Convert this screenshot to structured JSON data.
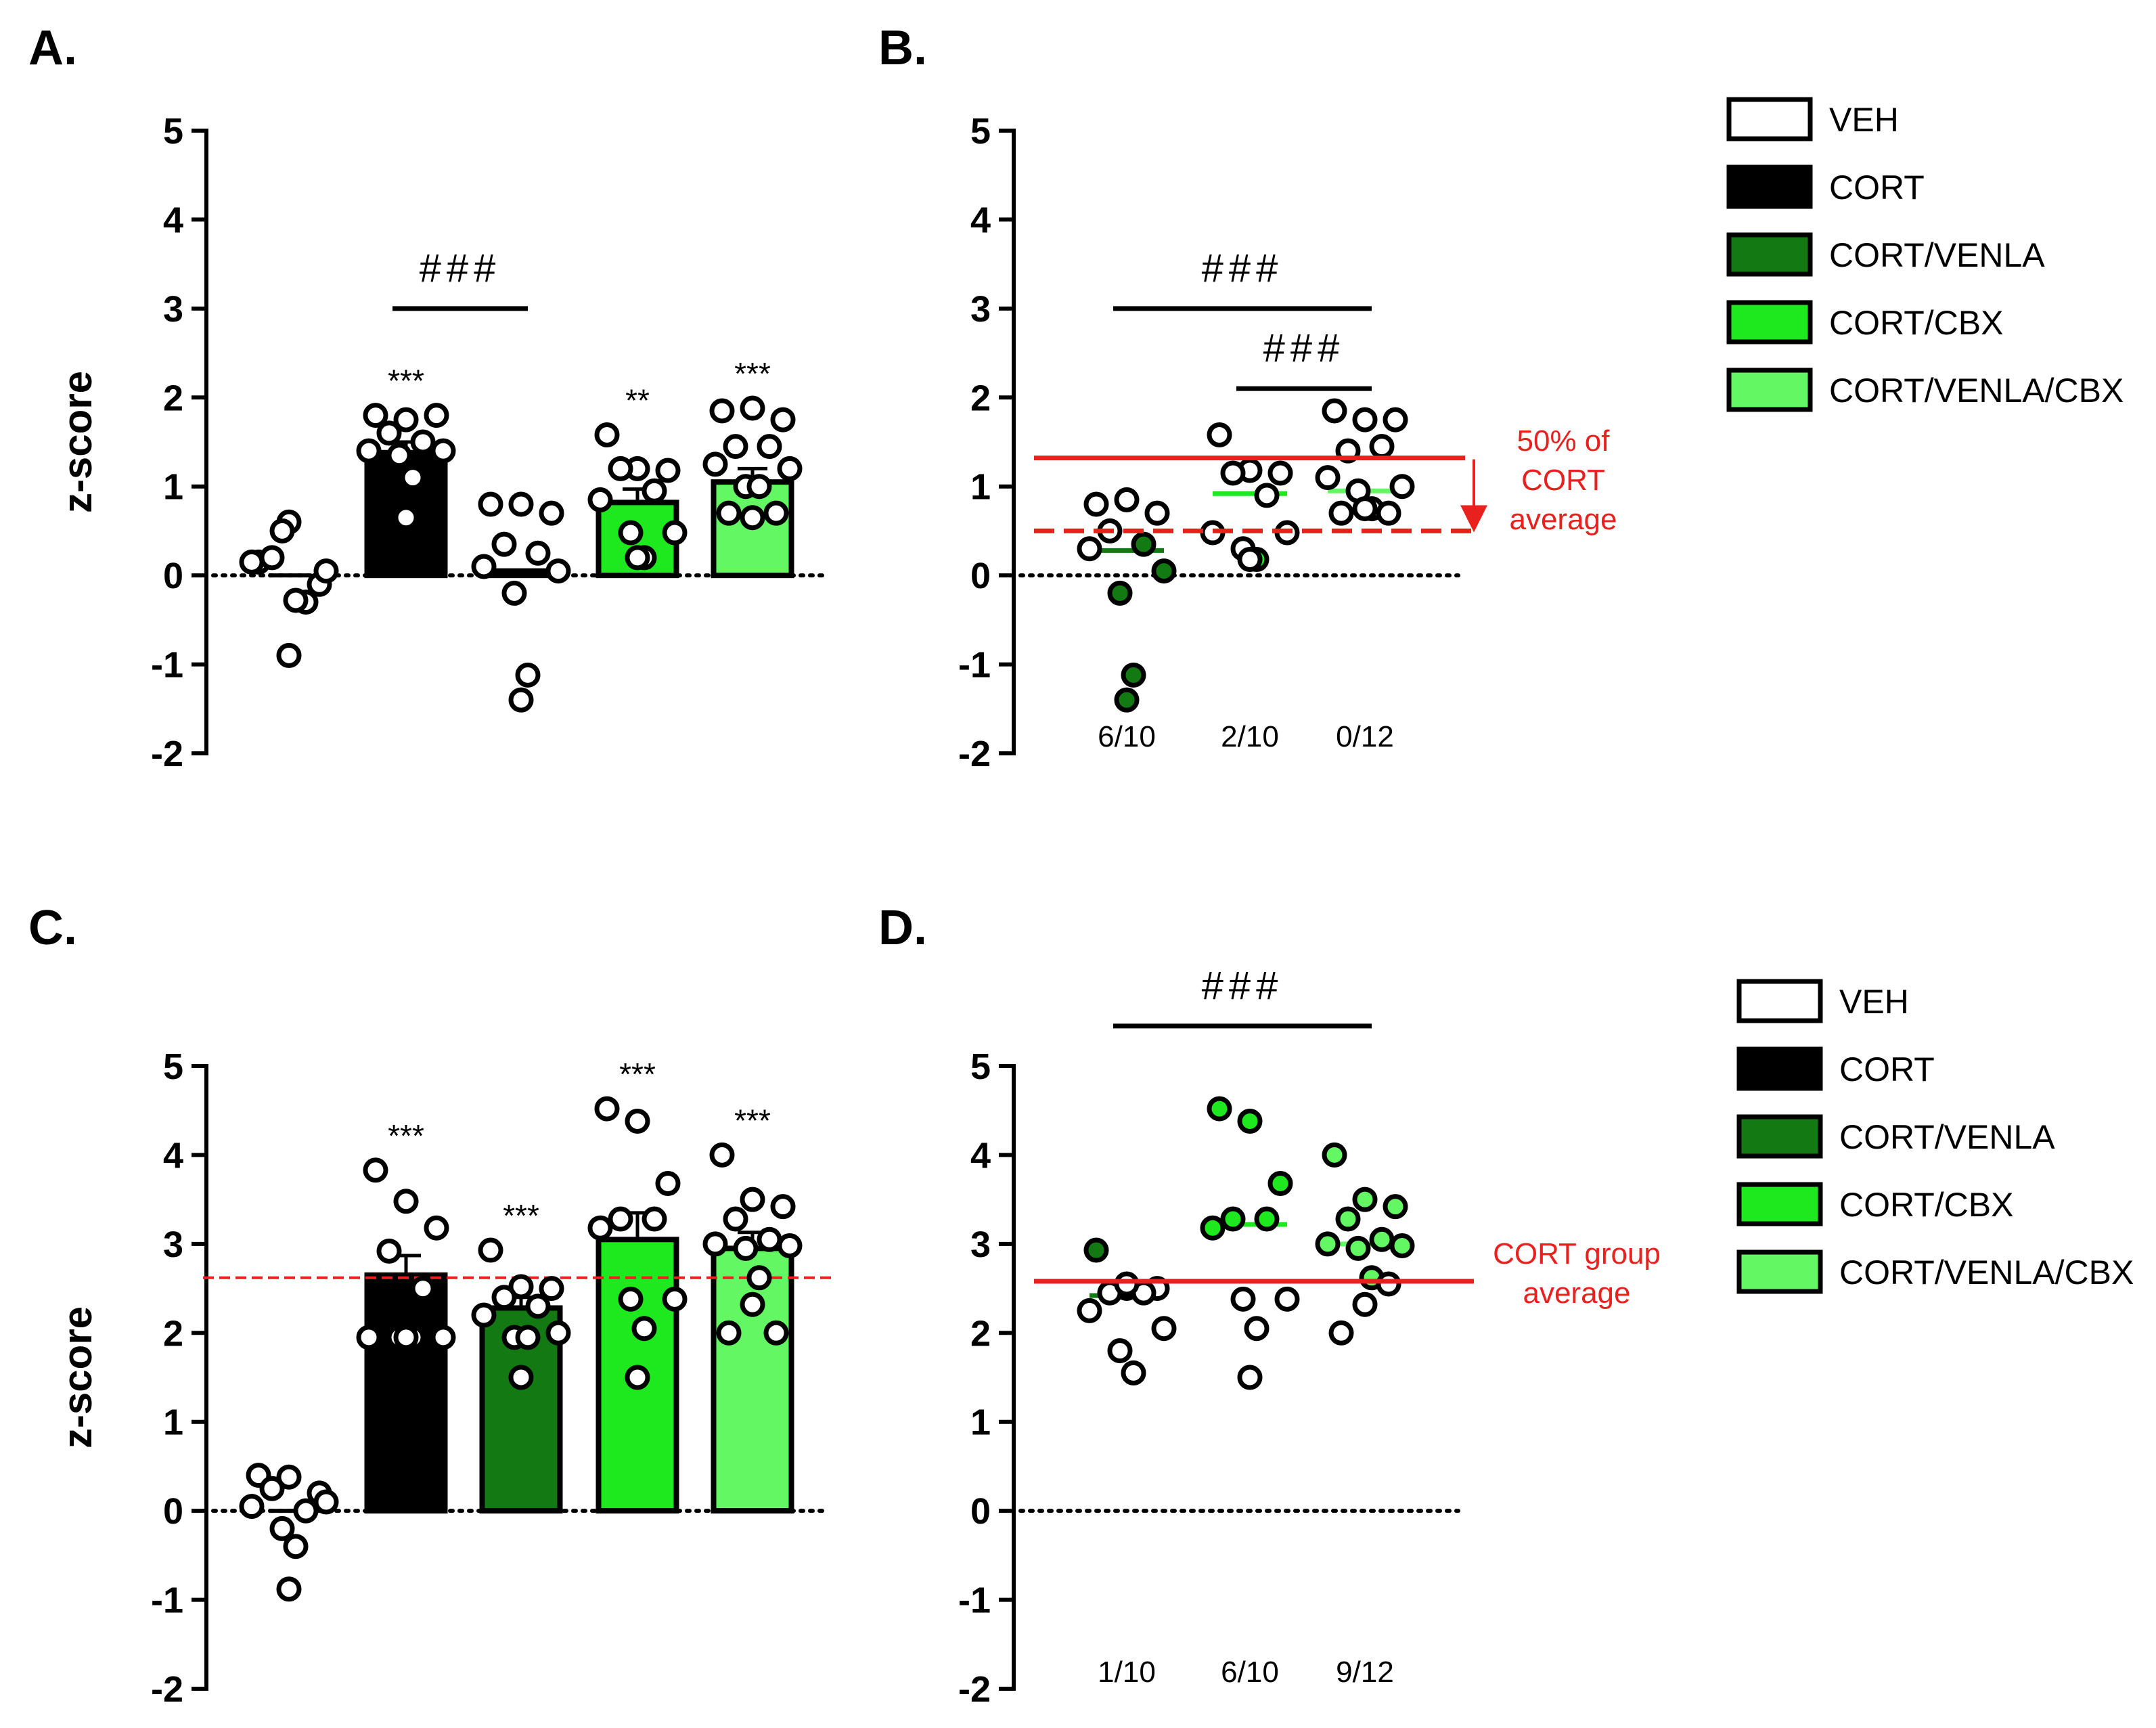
{
  "colors": {
    "VEH": "#ffffff",
    "CORT": "#000000",
    "CORT/VENLA": "#137a13",
    "CORT/CBX": "#1ee81e",
    "CORT/VENLA/CBX": "#63f763",
    "red": "#e8201e"
  },
  "legend": {
    "top": [
      "VEH",
      "CORT",
      "CORT/VENLA",
      "CORT/CBX",
      "CORT/VENLA/CBX"
    ],
    "bottom": [
      "VEH",
      "CORT",
      "CORT/VENLA",
      "CORT/CBX",
      "CORT/VENLA/CBX"
    ]
  },
  "chart_data": [
    {
      "id": "A",
      "panel_label": "A.",
      "type": "bar",
      "ylabel": "z-score",
      "ylim": [
        -2,
        5
      ],
      "yticks": [
        "5",
        "4",
        "3",
        "2",
        "1",
        "0",
        "-1",
        "-2"
      ],
      "categories": [
        "VEH",
        "CORT",
        "CORT/VENLA",
        "CORT/CBX",
        "CORT/VENLA/CBX"
      ],
      "means": [
        0,
        1.38,
        0.05,
        0.82,
        1.05
      ],
      "sem": [
        0,
        0.12,
        0,
        0.15,
        0.15
      ],
      "points": [
        [
          0.15,
          0.6,
          -0.1,
          0.2,
          -0.3,
          0.15,
          0.05,
          0.5,
          -0.28,
          -0.9
        ],
        [
          1.8,
          1.75,
          1.8,
          1.6,
          1.5,
          1.4,
          1.4,
          1.35,
          1.1,
          0.65
        ],
        [
          0.8,
          0.8,
          0.7,
          0.35,
          0.25,
          0.1,
          0.05,
          -0.2,
          -1.12,
          -1.4
        ],
        [
          1.58,
          1.2,
          1.18,
          1.2,
          0.95,
          0.85,
          0.48,
          0.48,
          0.2,
          0.2
        ],
        [
          1.85,
          1.88,
          1.75,
          1.45,
          1.45,
          1.25,
          1.2,
          1.0,
          1.0,
          0.65,
          0.7,
          0.7
        ]
      ],
      "stars": [
        "",
        "***",
        "",
        "**",
        "***"
      ],
      "comparisons": [
        {
          "from": 1,
          "to": 2,
          "y": 3.0,
          "label": "###"
        }
      ]
    },
    {
      "id": "B",
      "panel_label": "B.",
      "type": "scatter",
      "ylim": [
        -2,
        5
      ],
      "yticks": [
        "5",
        "4",
        "3",
        "2",
        "1",
        "0",
        "-1",
        "-2"
      ],
      "categories": [
        "CORT/VENLA",
        "CORT/CBX",
        "CORT/VENLA/CBX"
      ],
      "medians": [
        0.28,
        0.92,
        0.95
      ],
      "points": [
        [
          0.8,
          0.85,
          0.7,
          0.5,
          0.35,
          0.3,
          0.05,
          -0.2,
          -1.12,
          -1.4
        ],
        [
          1.58,
          1.18,
          1.15,
          1.15,
          0.9,
          0.48,
          0.48,
          0.3,
          0.18,
          0.18
        ],
        [
          1.85,
          1.75,
          1.75,
          1.4,
          1.45,
          1.1,
          1.0,
          0.95,
          0.75,
          0.75,
          0.7,
          0.7
        ]
      ],
      "point_fill": [
        [
          "#ffffff",
          "#ffffff",
          "#ffffff",
          "#ffffff",
          "#137a13",
          "#ffffff",
          "#137a13",
          "#137a13",
          "#137a13",
          "#137a13"
        ],
        [
          "#ffffff",
          "#ffffff",
          "#ffffff",
          "#ffffff",
          "#ffffff",
          "#ffffff",
          "#ffffff",
          "#ffffff",
          "#1ee81e",
          "#ffffff"
        ],
        [
          "#ffffff",
          "#ffffff",
          "#ffffff",
          "#ffffff",
          "#ffffff",
          "#ffffff",
          "#ffffff",
          "#ffffff",
          "#ffffff",
          "#ffffff",
          "#ffffff",
          "#ffffff"
        ]
      ],
      "ratios": [
        "6/10",
        "2/10",
        "0/12"
      ],
      "threshold_solid": 1.32,
      "threshold_dashed": 0.5,
      "annotation_lines": [
        "50% of",
        "CORT",
        "average"
      ],
      "comparisons": [
        {
          "from": 0,
          "to": 2,
          "y": 3.0,
          "label": "###"
        },
        {
          "from": 1,
          "to": 2,
          "y": 2.1,
          "label": "###"
        }
      ]
    },
    {
      "id": "C",
      "panel_label": "C.",
      "type": "bar",
      "ylabel": "z-score",
      "ylim": [
        -2,
        5
      ],
      "yticks": [
        "5",
        "4",
        "3",
        "2",
        "1",
        "0",
        "-1",
        "-2"
      ],
      "categories": [
        "VEH",
        "CORT",
        "CORT/VENLA",
        "CORT/CBX",
        "CORT/VENLA/CBX"
      ],
      "means": [
        0,
        2.65,
        2.28,
        3.05,
        2.95
      ],
      "sem": [
        0,
        0.22,
        0.12,
        0.3,
        0.18
      ],
      "reference_line": 2.62,
      "points": [
        [
          0.4,
          0.38,
          0.2,
          0.25,
          0.0,
          0.05,
          0.1,
          -0.2,
          -0.4,
          -0.88
        ],
        [
          3.83,
          3.48,
          3.18,
          2.92,
          2.5,
          1.95,
          1.95,
          1.95,
          1.95,
          1.95
        ],
        [
          2.93,
          2.52,
          2.5,
          2.4,
          2.3,
          2.2,
          2.0,
          1.95,
          1.95,
          1.5
        ],
        [
          4.52,
          4.38,
          3.68,
          3.28,
          3.28,
          3.18,
          2.38,
          2.38,
          2.05,
          1.5
        ],
        [
          4.0,
          3.5,
          3.42,
          3.28,
          3.05,
          3.0,
          2.98,
          2.95,
          2.62,
          2.32,
          2.0,
          2.0
        ]
      ],
      "stars": [
        "",
        "***",
        "***",
        "***",
        "***"
      ]
    },
    {
      "id": "D",
      "panel_label": "D.",
      "type": "scatter",
      "ylim": [
        -2,
        5
      ],
      "yticks": [
        "5",
        "4",
        "3",
        "2",
        "1",
        "0",
        "-1",
        "-2"
      ],
      "categories": [
        "CORT/VENLA",
        "CORT/CBX",
        "CORT/VENLA/CBX"
      ],
      "medians": [
        2.42,
        3.22,
        3.0
      ],
      "points": [
        [
          2.93,
          2.5,
          2.5,
          2.45,
          2.45,
          2.25,
          2.05,
          1.8,
          1.55,
          2.55
        ],
        [
          4.52,
          4.38,
          3.68,
          3.28,
          3.28,
          3.18,
          2.38,
          2.38,
          2.05,
          1.5
        ],
        [
          4.0,
          3.5,
          3.42,
          3.28,
          3.05,
          3.0,
          2.98,
          2.95,
          2.62,
          2.32,
          2.0,
          2.55
        ]
      ],
      "point_fill": [
        [
          "#137a13",
          "#ffffff",
          "#ffffff",
          "#ffffff",
          "#ffffff",
          "#ffffff",
          "#ffffff",
          "#ffffff",
          "#ffffff",
          "#ffffff"
        ],
        [
          "#1ee81e",
          "#1ee81e",
          "#1ee81e",
          "#1ee81e",
          "#1ee81e",
          "#1ee81e",
          "#ffffff",
          "#ffffff",
          "#ffffff",
          "#ffffff"
        ],
        [
          "#63f763",
          "#63f763",
          "#63f763",
          "#63f763",
          "#63f763",
          "#63f763",
          "#63f763",
          "#63f763",
          "#63f763",
          "#ffffff",
          "#ffffff",
          "#ffffff"
        ]
      ],
      "ratios": [
        "1/10",
        "6/10",
        "9/12"
      ],
      "threshold_solid": 2.58,
      "annotation_lines": [
        "CORT group",
        "average"
      ],
      "comparisons": [
        {
          "from": 0,
          "to": 2,
          "y": 5.45,
          "label": "###"
        }
      ]
    }
  ]
}
